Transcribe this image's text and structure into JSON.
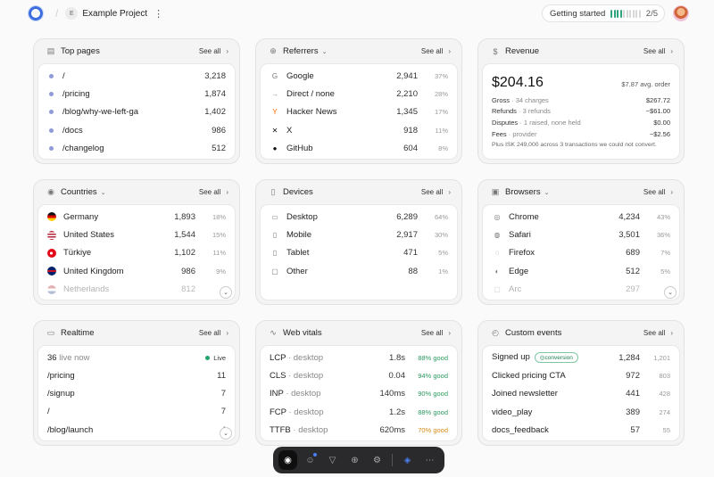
{
  "header": {
    "project_initial": "E",
    "project_name": "Example Project",
    "getting_started_label": "Getting started",
    "getting_started_count": "2/5",
    "getting_started_progress": 0.4
  },
  "top_pages": {
    "title": "Top pages",
    "see_all": "See all",
    "rows": [
      {
        "label": "/",
        "value": "3,218"
      },
      {
        "label": "/pricing",
        "value": "1,874"
      },
      {
        "label": "/blog/why-we-left-ga",
        "value": "1,402"
      },
      {
        "label": "/docs",
        "value": "986"
      },
      {
        "label": "/changelog",
        "value": "512"
      }
    ]
  },
  "referrers": {
    "title": "Referrers",
    "see_all": "See all",
    "rows": [
      {
        "label": "Google",
        "value": "2,941",
        "pct": "37%",
        "icon": "google-icon",
        "glyph": "G",
        "color": "#777"
      },
      {
        "label": "Direct / none",
        "value": "2,210",
        "pct": "28%",
        "icon": "arrow-right-icon",
        "glyph": "→",
        "color": "#999"
      },
      {
        "label": "Hacker News",
        "value": "1,345",
        "pct": "17%",
        "icon": "hacker-news-icon",
        "glyph": "Y",
        "color": "#ff6600"
      },
      {
        "label": "X",
        "value": "918",
        "pct": "11%",
        "icon": "x-icon",
        "glyph": "✕",
        "color": "#111"
      },
      {
        "label": "GitHub",
        "value": "604",
        "pct": "8%",
        "icon": "github-icon",
        "glyph": "●",
        "color": "#111"
      }
    ]
  },
  "revenue": {
    "title": "Revenue",
    "see_all": "See all",
    "amount": "$204.16",
    "avg": "$7.87 avg. order",
    "lines": [
      {
        "label": "Gross",
        "sub": "· 34 charges",
        "value": "$267.72"
      },
      {
        "label": "Refunds",
        "sub": "· 3 refunds",
        "value": "−$61.00"
      },
      {
        "label": "Disputes",
        "sub": "· 1 raised, none held",
        "value": "$0.00"
      },
      {
        "label": "Fees",
        "sub": "· provider",
        "value": "−$2.56"
      }
    ],
    "note": "Plus ISK 249,000 across 3 transactions we could not convert."
  },
  "countries": {
    "title": "Countries",
    "see_all": "See all",
    "rows": [
      {
        "label": "Germany",
        "value": "1,893",
        "pct": "18%",
        "icon": "germany-flag-icon",
        "flag": "linear-gradient(#111 0 33%, #d00 33% 66%, #fc0 66%)"
      },
      {
        "label": "United States",
        "value": "1,544",
        "pct": "15%",
        "icon": "us-flag-icon",
        "flag": "repeating-linear-gradient(#b22234 0 1.5px, #fff 1.5px 3px)"
      },
      {
        "label": "Türkiye",
        "value": "1,102",
        "pct": "11%",
        "icon": "turkey-flag-icon",
        "flag": "radial-gradient(circle at 45% 50%, #fff 0 22%, #e30a17 23%)"
      },
      {
        "label": "United Kingdom",
        "value": "986",
        "pct": "9%",
        "icon": "uk-flag-icon",
        "flag": "linear-gradient(#012169 0 40%, #c8102e 40% 60%, #012169 60%)"
      },
      {
        "label": "Netherlands",
        "value": "812",
        "pct": "",
        "icon": "netherlands-flag-icon",
        "flag": "linear-gradient(#ae1c28 0 33%, #fff 33% 66%, #21468b 66%)"
      }
    ]
  },
  "devices": {
    "title": "Devices",
    "see_all": "See all",
    "rows": [
      {
        "label": "Desktop",
        "value": "6,289",
        "pct": "64%",
        "icon": "desktop-icon",
        "glyph": "▭"
      },
      {
        "label": "Mobile",
        "value": "2,917",
        "pct": "30%",
        "icon": "mobile-icon",
        "glyph": "▯"
      },
      {
        "label": "Tablet",
        "value": "471",
        "pct": "5%",
        "icon": "tablet-icon",
        "glyph": "▯"
      },
      {
        "label": "Other",
        "value": "88",
        "pct": "1%",
        "icon": "other-device-icon",
        "glyph": "▢"
      }
    ]
  },
  "browsers": {
    "title": "Browsers",
    "see_all": "See all",
    "rows": [
      {
        "label": "Chrome",
        "value": "4,234",
        "pct": "43%",
        "icon": "chrome-icon",
        "glyph": "◎"
      },
      {
        "label": "Safari",
        "value": "3,501",
        "pct": "36%",
        "icon": "safari-icon",
        "glyph": "◍"
      },
      {
        "label": "Firefox",
        "value": "689",
        "pct": "7%",
        "icon": "firefox-icon",
        "glyph": "◌"
      },
      {
        "label": "Edge",
        "value": "512",
        "pct": "5%",
        "icon": "edge-icon",
        "glyph": "◐"
      },
      {
        "label": "Arc",
        "value": "297",
        "pct": "",
        "icon": "arc-icon",
        "glyph": "▢"
      }
    ]
  },
  "realtime": {
    "title": "Realtime",
    "see_all": "See all",
    "live_count": "36",
    "live_label": "live now",
    "live_tag": "Live",
    "rows": [
      {
        "label": "/pricing",
        "value": "11"
      },
      {
        "label": "/signup",
        "value": "7"
      },
      {
        "label": "/",
        "value": "7"
      },
      {
        "label": "/blog/launch",
        "value": "4"
      }
    ]
  },
  "web_vitals": {
    "title": "Web vitals",
    "see_all": "See all",
    "rows": [
      {
        "metric": "LCP",
        "device": "· desktop",
        "value": "1.8s",
        "good": "88% good",
        "warn": false
      },
      {
        "metric": "CLS",
        "device": "· desktop",
        "value": "0.04",
        "good": "94% good",
        "warn": false
      },
      {
        "metric": "INP",
        "device": "· desktop",
        "value": "140ms",
        "good": "90% good",
        "warn": false
      },
      {
        "metric": "FCP",
        "device": "· desktop",
        "value": "1.2s",
        "good": "88% good",
        "warn": false
      },
      {
        "metric": "TTFB",
        "device": "· desktop",
        "value": "620ms",
        "good": "70% good",
        "warn": true
      }
    ]
  },
  "custom_events": {
    "title": "Custom events",
    "see_all": "See all",
    "conversion_badge": "conversion",
    "rows": [
      {
        "label": "Signed up",
        "value": "1,284",
        "prev": "1,201"
      },
      {
        "label": "Clicked pricing CTA",
        "value": "972",
        "prev": "803"
      },
      {
        "label": "Joined newsletter",
        "value": "441",
        "prev": "428"
      },
      {
        "label": "video_play",
        "value": "389",
        "prev": "274"
      },
      {
        "label": "docs_feedback",
        "value": "57",
        "prev": "55"
      }
    ]
  },
  "dock": [
    {
      "name": "dashboard-icon",
      "glyph": "◉",
      "active": true
    },
    {
      "name": "users-icon",
      "glyph": "☺",
      "notif": true
    },
    {
      "name": "funnel-icon",
      "glyph": "▽"
    },
    {
      "name": "globe-icon",
      "glyph": "⊕"
    },
    {
      "name": "settings-icon",
      "glyph": "⚙"
    },
    {
      "name": "sep"
    },
    {
      "name": "ai-assistant-icon",
      "glyph": "◈",
      "blue": true
    },
    {
      "name": "more-icon",
      "glyph": "⋯"
    }
  ]
}
